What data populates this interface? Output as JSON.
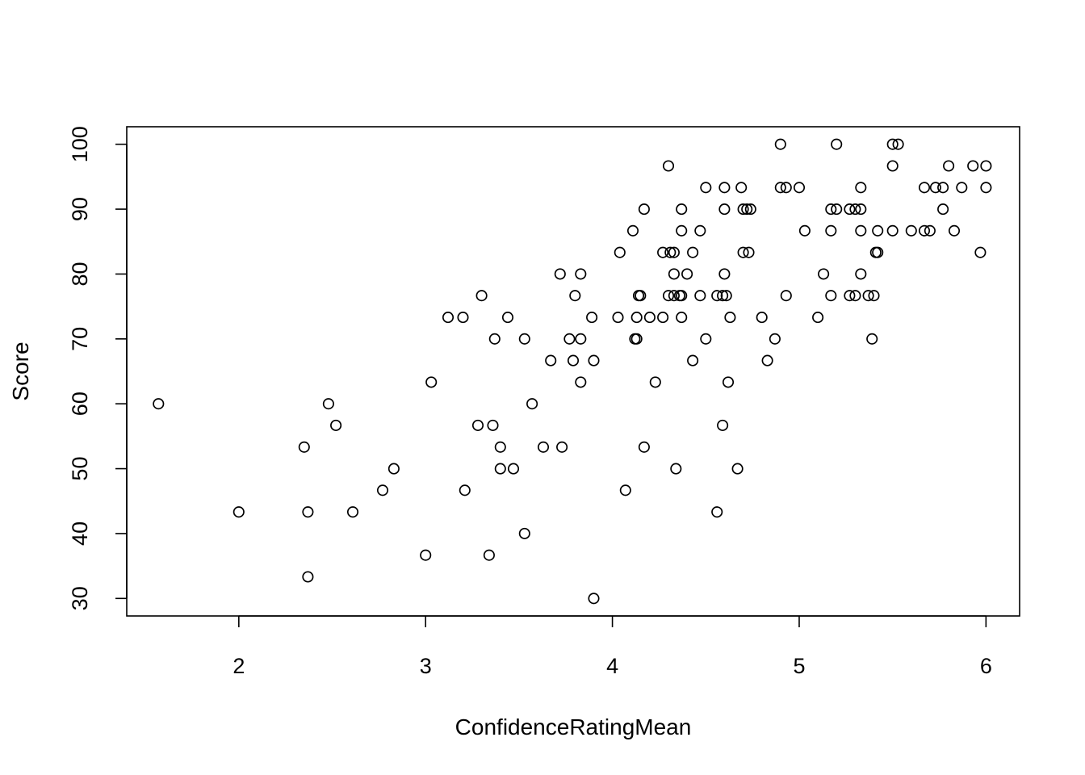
{
  "chart_data": {
    "type": "scatter",
    "title": "",
    "xlabel": "ConfidenceRatingMean",
    "ylabel": "Score",
    "xlim": [
      1.4,
      6.18
    ],
    "ylim": [
      27.3,
      102.7
    ],
    "x_ticks": [
      2,
      3,
      4,
      5,
      6
    ],
    "y_ticks": [
      30,
      40,
      50,
      60,
      70,
      80,
      90,
      100
    ],
    "grid": false,
    "legend": "none",
    "marker": "open-circle",
    "points": [
      [
        1.57,
        60.0
      ],
      [
        2.0,
        43.33
      ],
      [
        2.35,
        53.33
      ],
      [
        2.37,
        43.33
      ],
      [
        2.37,
        33.33
      ],
      [
        2.48,
        60.0
      ],
      [
        2.52,
        56.67
      ],
      [
        2.61,
        43.33
      ],
      [
        2.77,
        46.67
      ],
      [
        2.83,
        50.0
      ],
      [
        3.0,
        36.67
      ],
      [
        3.03,
        63.33
      ],
      [
        3.12,
        73.33
      ],
      [
        3.2,
        73.33
      ],
      [
        3.21,
        46.67
      ],
      [
        3.28,
        56.67
      ],
      [
        3.3,
        76.67
      ],
      [
        3.34,
        36.67
      ],
      [
        3.36,
        56.67
      ],
      [
        3.37,
        70.0
      ],
      [
        3.4,
        53.33
      ],
      [
        3.4,
        50.0
      ],
      [
        3.44,
        73.33
      ],
      [
        3.47,
        50.0
      ],
      [
        3.53,
        70.0
      ],
      [
        3.53,
        40.0
      ],
      [
        3.57,
        60.0
      ],
      [
        3.63,
        53.33
      ],
      [
        3.67,
        66.67
      ],
      [
        3.72,
        80.0
      ],
      [
        3.73,
        53.33
      ],
      [
        3.77,
        70.0
      ],
      [
        3.79,
        66.67
      ],
      [
        3.8,
        76.67
      ],
      [
        3.83,
        80.0
      ],
      [
        3.83,
        70.0
      ],
      [
        3.83,
        63.33
      ],
      [
        3.89,
        73.33
      ],
      [
        3.9,
        66.67
      ],
      [
        3.9,
        30.0
      ],
      [
        4.03,
        73.33
      ],
      [
        4.04,
        83.33
      ],
      [
        4.07,
        46.67
      ],
      [
        4.11,
        86.67
      ],
      [
        4.12,
        70.0
      ],
      [
        4.13,
        70.0
      ],
      [
        4.13,
        73.33
      ],
      [
        4.14,
        76.67
      ],
      [
        4.15,
        76.67
      ],
      [
        4.17,
        90.0
      ],
      [
        4.17,
        53.33
      ],
      [
        4.2,
        73.33
      ],
      [
        4.23,
        63.33
      ],
      [
        4.27,
        83.33
      ],
      [
        4.27,
        73.33
      ],
      [
        4.3,
        96.67
      ],
      [
        4.3,
        76.67
      ],
      [
        4.31,
        83.33
      ],
      [
        4.33,
        83.33
      ],
      [
        4.33,
        80.0
      ],
      [
        4.33,
        76.67
      ],
      [
        4.34,
        50.0
      ],
      [
        4.36,
        76.67
      ],
      [
        4.37,
        90.0
      ],
      [
        4.37,
        86.67
      ],
      [
        4.37,
        73.33
      ],
      [
        4.37,
        76.67
      ],
      [
        4.4,
        80.0
      ],
      [
        4.43,
        83.33
      ],
      [
        4.43,
        66.67
      ],
      [
        4.47,
        86.67
      ],
      [
        4.47,
        76.67
      ],
      [
        4.5,
        93.33
      ],
      [
        4.5,
        70.0
      ],
      [
        4.56,
        76.67
      ],
      [
        4.56,
        43.33
      ],
      [
        4.59,
        76.67
      ],
      [
        4.59,
        56.67
      ],
      [
        4.6,
        93.33
      ],
      [
        4.6,
        90.0
      ],
      [
        4.6,
        80.0
      ],
      [
        4.61,
        76.67
      ],
      [
        4.62,
        63.33
      ],
      [
        4.63,
        73.33
      ],
      [
        4.67,
        50.0
      ],
      [
        4.69,
        93.33
      ],
      [
        4.7,
        83.33
      ],
      [
        4.7,
        90.0
      ],
      [
        4.72,
        90.0
      ],
      [
        4.73,
        83.33
      ],
      [
        4.74,
        90.0
      ],
      [
        4.8,
        73.33
      ],
      [
        4.83,
        66.67
      ],
      [
        4.87,
        70.0
      ],
      [
        4.9,
        100.0
      ],
      [
        4.9,
        93.33
      ],
      [
        4.93,
        93.33
      ],
      [
        4.93,
        76.67
      ],
      [
        5.0,
        93.33
      ],
      [
        5.03,
        86.67
      ],
      [
        5.1,
        73.33
      ],
      [
        5.13,
        80.0
      ],
      [
        5.17,
        90.0
      ],
      [
        5.17,
        86.67
      ],
      [
        5.17,
        76.67
      ],
      [
        5.2,
        100.0
      ],
      [
        5.2,
        90.0
      ],
      [
        5.27,
        90.0
      ],
      [
        5.27,
        76.67
      ],
      [
        5.3,
        90.0
      ],
      [
        5.3,
        76.67
      ],
      [
        5.33,
        93.33
      ],
      [
        5.33,
        90.0
      ],
      [
        5.33,
        86.67
      ],
      [
        5.33,
        80.0
      ],
      [
        5.37,
        76.67
      ],
      [
        5.39,
        70.0
      ],
      [
        5.4,
        76.67
      ],
      [
        5.41,
        83.33
      ],
      [
        5.42,
        86.67
      ],
      [
        5.42,
        83.33
      ],
      [
        5.5,
        100.0
      ],
      [
        5.5,
        96.67
      ],
      [
        5.5,
        86.67
      ],
      [
        5.53,
        100.0
      ],
      [
        5.6,
        86.67
      ],
      [
        5.67,
        93.33
      ],
      [
        5.67,
        86.67
      ],
      [
        5.7,
        86.67
      ],
      [
        5.73,
        93.33
      ],
      [
        5.77,
        93.33
      ],
      [
        5.77,
        90.0
      ],
      [
        5.8,
        96.67
      ],
      [
        5.83,
        86.67
      ],
      [
        5.87,
        93.33
      ],
      [
        5.93,
        96.67
      ],
      [
        5.97,
        83.33
      ],
      [
        6.0,
        96.67
      ],
      [
        6.0,
        93.33
      ]
    ]
  }
}
